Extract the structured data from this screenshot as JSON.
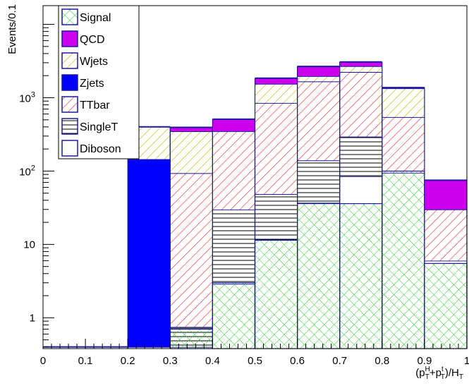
{
  "chart_data": {
    "type": "bar",
    "stacked": true,
    "ylabel": "Events/0.1",
    "xlabel_parts": {
      "open": "(p",
      "sup1": "H",
      "sub1": "T",
      "plus": "+p",
      "sup2": "t",
      "sub2": "T",
      "close": ")/H",
      "sub3": "T"
    },
    "x_bin_edges": [
      0,
      0.1,
      0.2,
      0.3,
      0.4,
      0.5,
      0.6,
      0.7,
      0.8,
      0.9,
      1.0
    ],
    "xlim": [
      0,
      1
    ],
    "ylim": [
      0.38,
      18000
    ],
    "log_y": true,
    "x_tick_labels": [
      "0",
      "0.1",
      "0.2",
      "0.3",
      "0.4",
      "0.5",
      "0.6",
      "0.7",
      "0.8",
      "0.9",
      "1"
    ],
    "y_tick_labels": [
      {
        "value": 1,
        "text": "1"
      },
      {
        "value": 10,
        "text": "10"
      },
      {
        "value": 100,
        "base": "10",
        "exp": "2"
      },
      {
        "value": 1000,
        "base": "10",
        "exp": "3"
      }
    ],
    "grid": false,
    "legend_position": "top-left",
    "legend_order": [
      "Signal",
      "QCD",
      "Wjets",
      "Zjets",
      "TTbar",
      "SingleT",
      "Diboson"
    ],
    "stack_order_bottom_to_top": [
      "Diboson",
      "SingleT",
      "TTbar",
      "Zjets",
      "Wjets",
      "QCD"
    ],
    "series": [
      {
        "name": "Diboson",
        "color": "#1a1aa0",
        "pattern": "none",
        "values": [
          0.4,
          0.4,
          0.4,
          0.4,
          2.9,
          11.5,
          37,
          85,
          95,
          6
        ]
      },
      {
        "name": "SingleT",
        "color": "#000000",
        "pattern": "horizontal-lines",
        "values": [
          0,
          0,
          0,
          0.35,
          27,
          37,
          103,
          210,
          0,
          0
        ]
      },
      {
        "name": "TTbar",
        "color": "#e8303a",
        "pattern": "diagonal-hatch",
        "values": [
          0,
          0,
          0,
          93,
          320,
          800,
          1530,
          1950,
          450,
          24
        ]
      },
      {
        "name": "Zjets",
        "color": "#0000ff",
        "pattern": "solid",
        "values": [
          0,
          0,
          145,
          0,
          0,
          0,
          0,
          0,
          0,
          0
        ]
      },
      {
        "name": "Wjets",
        "color": "#c8b400",
        "pattern": "diagonal-hatch",
        "values": [
          0,
          0,
          255,
          255,
          0,
          700,
          300,
          450,
          800,
          0
        ]
      },
      {
        "name": "QCD",
        "color": "#cc00ee",
        "pattern": "solid",
        "values": [
          0,
          0,
          0,
          45,
          160,
          300,
          700,
          380,
          30,
          45
        ]
      }
    ],
    "signal": {
      "name": "Signal",
      "color": "#22cc22",
      "pattern": "cross-hatch",
      "outline": "#1a1aa0",
      "values": [
        0,
        0,
        0,
        0.7,
        3,
        11.5,
        36,
        36,
        100,
        5.5
      ]
    }
  },
  "colors": {
    "axis": "#000000",
    "outline": "#1a1aa0"
  }
}
